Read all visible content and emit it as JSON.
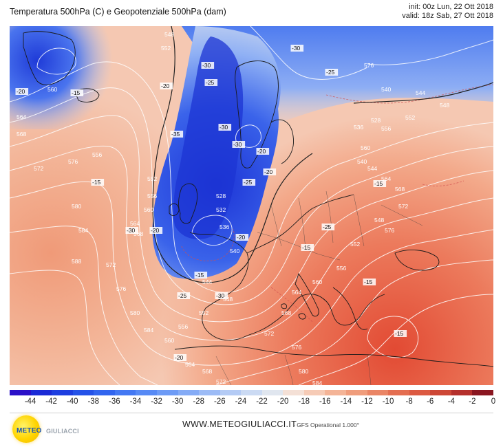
{
  "header": {
    "title": "Temperatura 500hPa (C) e Geopotenziale 500hPa (dam)",
    "init": "init: 00z Lun, 22 Ott 2018",
    "valid": "valid: 18z Sab, 27 Ott 2018"
  },
  "map": {
    "projection": "lat-lon",
    "region": "North Atlantic and Europe",
    "temperature_labels": [
      "-20",
      "-15",
      "-30",
      "-25",
      "-20",
      "-30",
      "-25",
      "-30",
      "-35",
      "-30",
      "-25",
      "-20",
      "-15",
      "-30",
      "-25",
      "-20",
      "-15",
      "-30",
      "-25",
      "-20",
      "-20",
      "-15",
      "-15",
      "-15",
      "-15",
      "-20"
    ],
    "geopotential_labels": [
      "548",
      "552",
      "556",
      "560",
      "564",
      "568",
      "572",
      "576",
      "580",
      "584",
      "588",
      "540",
      "544",
      "548",
      "552",
      "556",
      "560",
      "564",
      "568",
      "572",
      "576",
      "552",
      "556",
      "560",
      "564",
      "568",
      "572",
      "576",
      "580",
      "584",
      "528",
      "532",
      "536",
      "540",
      "544",
      "548",
      "552",
      "556",
      "560",
      "564",
      "568",
      "572",
      "576",
      "528",
      "536",
      "540",
      "544",
      "548",
      "552",
      "556",
      "560",
      "564",
      "568",
      "572",
      "576",
      "580",
      "584"
    ],
    "colors": {
      "coldest": "#1d34d6",
      "cold": "#5d8bf0",
      "cool": "#b9cdf3",
      "neutral": "#f4e4dc",
      "warm": "#f3a98a",
      "warmer": "#ec7a5c",
      "hot": "#e0503a",
      "contour_geopotential": "#ffffff",
      "contour_temperature": "#d05050",
      "contour_reference": "#222222",
      "coastline": "#1a1a1a"
    }
  },
  "colorbar": {
    "values": [
      -44,
      -42,
      -40,
      -38,
      -36,
      -34,
      -32,
      -30,
      -28,
      -26,
      -24,
      -22,
      -20,
      -18,
      -16,
      -14,
      -12,
      -10,
      -8,
      -6,
      -4,
      -2,
      0
    ],
    "labels": [
      "-44",
      "-42",
      "-40",
      "-38",
      "-36",
      "-34",
      "-32",
      "-30",
      "-28",
      "-26",
      "-24",
      "-22",
      "-20",
      "-18",
      "-16",
      "-14",
      "-12",
      "-10",
      "-8",
      "-6",
      "-4",
      "-2",
      "0"
    ],
    "colors": [
      "#2a10c8",
      "#1a2ad6",
      "#1d3ee0",
      "#2452e8",
      "#3165ef",
      "#4378f3",
      "#578af5",
      "#6d9bf6",
      "#84abf6",
      "#9cbbf6",
      "#b4cbf5",
      "#cbdaf3",
      "#e0e6ef",
      "#f4e0d6",
      "#f6cbb6",
      "#f4b497",
      "#f09d7c",
      "#ea8565",
      "#e46e51",
      "#dc5a42",
      "#cd4736",
      "#b5302c",
      "#8a1620"
    ]
  },
  "footer": {
    "logo_text_1": "METEO",
    "logo_text_2": "GIULIACCI",
    "site": "WWW.METEOGIULIACCI.IT",
    "model": "- GFS Operational 1.000°"
  }
}
